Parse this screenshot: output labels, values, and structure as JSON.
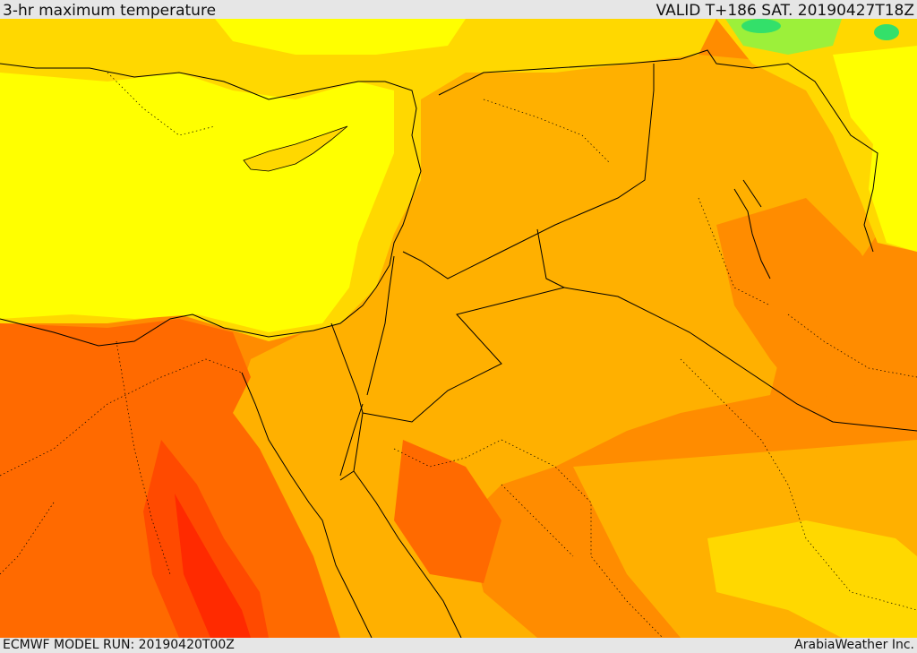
{
  "header": {
    "title": "3-hr maximum temperature",
    "valid": "VALID T+186 SAT. 20190427T18Z"
  },
  "footer": {
    "model_run": "ECMWF MODEL RUN: 20190420T00Z",
    "credit": "ArabiaWeather Inc."
  },
  "map": {
    "variable": "3-hr maximum temperature",
    "palette": {
      "cool_green": "#33e06a",
      "light_green": "#9cf03a",
      "yellow": "#ffff00",
      "gold": "#ffd800",
      "amber": "#ffb000",
      "orange": "#ff8c00",
      "dark_orange": "#ff6a00",
      "red_orange": "#ff4a00",
      "red": "#ff2a00"
    },
    "boundary_color": "#000000"
  }
}
